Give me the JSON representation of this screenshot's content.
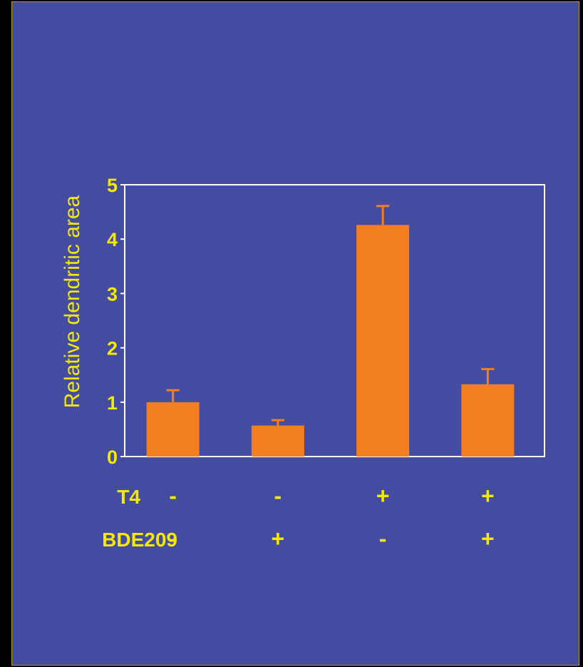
{
  "chart_data": {
    "type": "bar",
    "title": "",
    "xlabel": "",
    "ylabel": "Relative  dendritic area",
    "ylim": [
      0,
      5
    ],
    "yticks": [
      "0",
      "1",
      "2",
      "3",
      "4",
      "5"
    ],
    "categories": [
      "T4- / BDE209-",
      "T4- / BDE209+",
      "T4+ / BDE209-",
      "T4+ / BDE209+"
    ],
    "values": [
      1.0,
      0.57,
      4.26,
      1.33
    ],
    "errors": [
      0.22,
      0.1,
      0.35,
      0.28
    ],
    "conditions": [
      {
        "label": "T4",
        "signs": [
          "-",
          "-",
          "+",
          "+"
        ]
      },
      {
        "label": "BDE209",
        "signs": [
          "-",
          "+",
          "-",
          "+"
        ]
      }
    ],
    "grid": false,
    "colors": {
      "bar": "#f47f20",
      "error": "#f47f20",
      "axis": "#ffffff",
      "text": "#f5e900",
      "background": "#434ca0"
    }
  }
}
